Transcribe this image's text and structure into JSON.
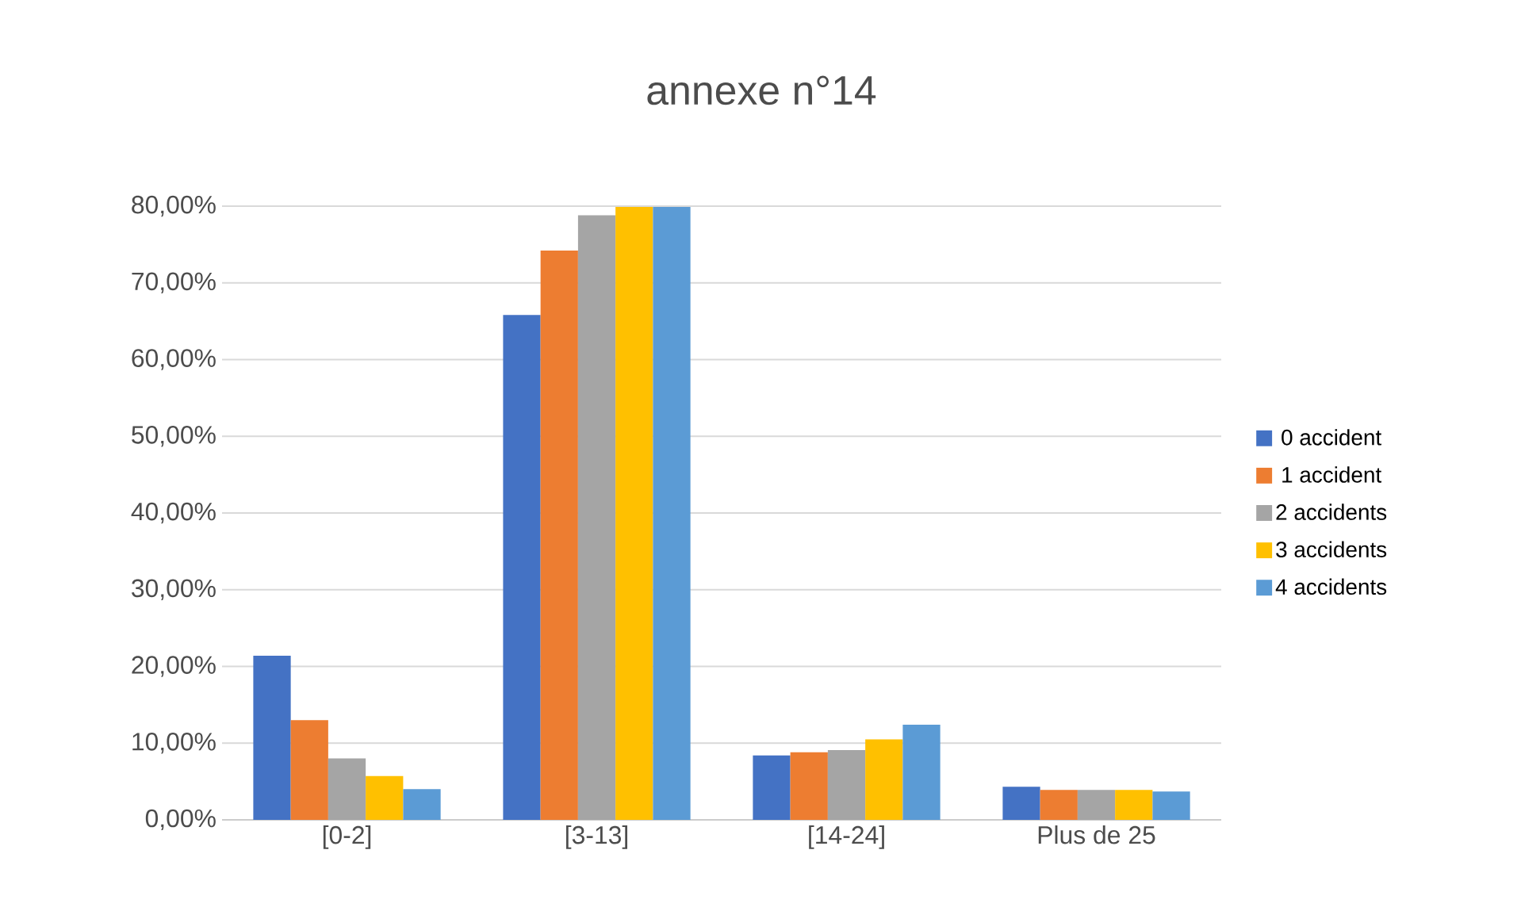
{
  "chart_data": {
    "type": "bar",
    "title": "annexe n°14",
    "categories": [
      "[0-2]",
      "[3-13]",
      "[14-24]",
      "Plus de 25"
    ],
    "series": [
      {
        "name": "0 accident",
        "color": "#4472c4",
        "values": [
          21.4,
          65.8,
          8.4,
          4.3
        ]
      },
      {
        "name": "1 accident",
        "color": "#ed7d31",
        "values": [
          13.0,
          74.2,
          8.8,
          3.9
        ]
      },
      {
        "name": "2 accidents",
        "color": "#a5a5a5",
        "values": [
          8.0,
          78.8,
          9.1,
          3.9
        ]
      },
      {
        "name": "3 accidents",
        "color": "#ffc000",
        "values": [
          5.7,
          79.9,
          10.5,
          3.9
        ]
      },
      {
        "name": "4 accidents",
        "color": "#5b9bd5",
        "values": [
          4.0,
          79.9,
          12.4,
          3.7
        ]
      }
    ],
    "ylim": [
      0,
      80
    ],
    "yticks": [
      {
        "value": 0,
        "label": "0,00%"
      },
      {
        "value": 10,
        "label": "10,00%"
      },
      {
        "value": 20,
        "label": "20,00%"
      },
      {
        "value": 30,
        "label": "30,00%"
      },
      {
        "value": 40,
        "label": "40,00%"
      },
      {
        "value": 50,
        "label": "50,00%"
      },
      {
        "value": 60,
        "label": "60,00%"
      },
      {
        "value": 70,
        "label": "70,00%"
      },
      {
        "value": 80,
        "label": "80,00%"
      }
    ],
    "grid": "y",
    "legend": "right"
  }
}
